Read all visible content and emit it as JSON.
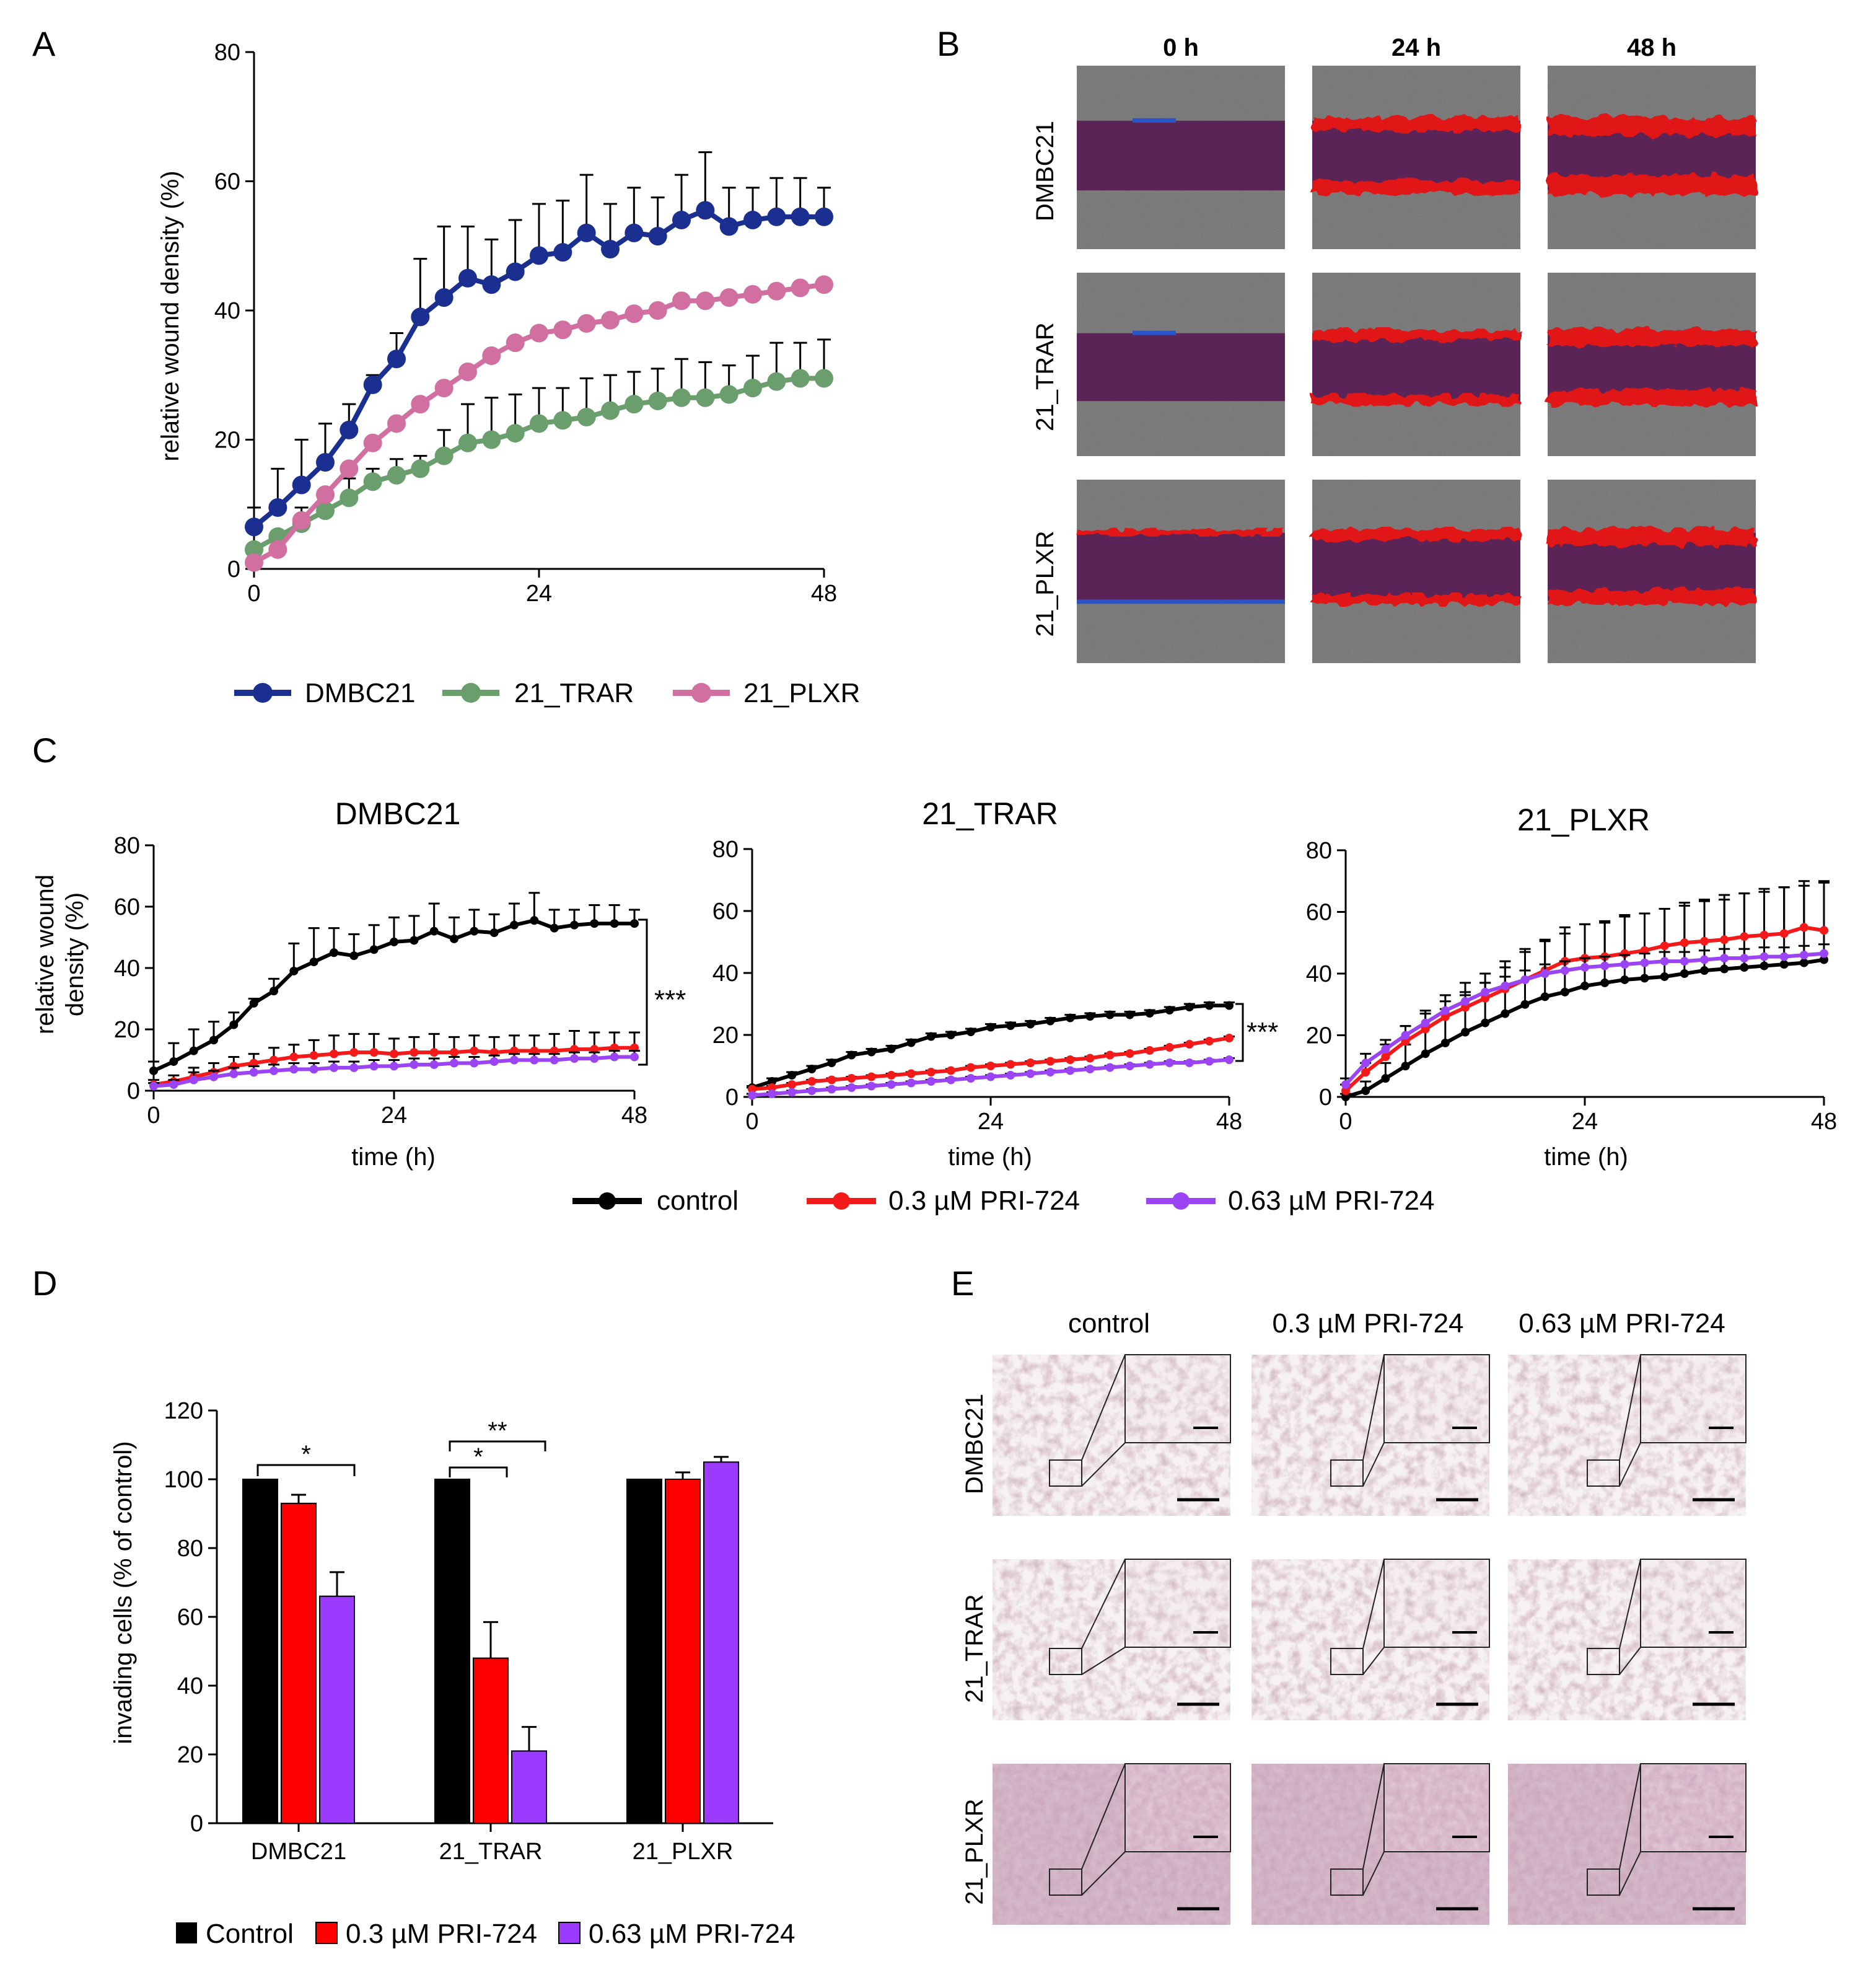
{
  "panels": {
    "A": "A",
    "B": "B",
    "C": "C",
    "D": "D",
    "E": "E"
  },
  "panelA": {
    "ylabel": "relative wound density (%)",
    "legend": [
      "DMBC21",
      "21_TRAR",
      "21_PLXR"
    ],
    "colors": {
      "DMBC21": "#1a2f8f",
      "21_TRAR": "#6a9e6c",
      "21_PLXR": "#d06fa0"
    }
  },
  "panelB": {
    "col_headers": [
      "0 h",
      "24 h",
      "48 h"
    ],
    "row_labels": [
      "DMBC21",
      "21_TRAR",
      "21_PLXR"
    ]
  },
  "panelC": {
    "titles": [
      "DMBC21",
      "21_TRAR",
      "21_PLXR"
    ],
    "ylabel_line1": "relative wound",
    "ylabel_line2": "density (%)",
    "xlabel": "time (h)",
    "sig": "***",
    "legend": [
      "control",
      "0.3 µM PRI-724",
      "0.63 µM PRI-724"
    ],
    "colors": {
      "control": "#000000",
      "low": "#f51a1a",
      "high": "#9b44f5"
    }
  },
  "panelD": {
    "ylabel": "invading cells (% of control)",
    "legend": [
      "Control",
      "0.3 µM PRI-724",
      "0.63 µM PRI-724"
    ],
    "sig": [
      "*",
      "*",
      "**"
    ],
    "colors": {
      "control": "#000000",
      "low": "#ff0000",
      "high": "#9b3bff"
    }
  },
  "panelE": {
    "col_headers": [
      "control",
      "0.3 µM PRI-724",
      "0.63 µM PRI-724"
    ],
    "row_labels": [
      "DMBC21",
      "21_TRAR",
      "21_PLXR"
    ]
  },
  "chart_data": [
    {
      "id": "A",
      "type": "line",
      "xlim": [
        0,
        48
      ],
      "ylim": [
        0,
        80
      ],
      "xticks": [
        0,
        24,
        48
      ],
      "yticks": [
        0,
        20,
        40,
        60,
        80
      ],
      "x": [
        0,
        2,
        4,
        6,
        8,
        10,
        12,
        14,
        16,
        18,
        20,
        22,
        24,
        26,
        28,
        30,
        32,
        34,
        36,
        38,
        40,
        42,
        44,
        46,
        48
      ],
      "series": [
        {
          "name": "DMBC21",
          "values": [
            6.5,
            9.5,
            13,
            16.5,
            21.5,
            28.5,
            32.5,
            39,
            42,
            45,
            44,
            46,
            48.5,
            49,
            52,
            49.5,
            52,
            51.5,
            54,
            55.5,
            53,
            54,
            54.5,
            54.5,
            54.5
          ],
          "err": [
            3,
            6,
            7,
            6,
            4,
            1.5,
            4,
            9,
            11,
            8,
            7,
            8,
            8,
            8,
            9,
            7,
            7,
            6,
            7,
            9,
            6,
            5,
            6,
            6,
            4.5
          ]
        },
        {
          "name": "21_TRAR",
          "values": [
            3,
            5,
            7,
            9,
            11,
            13.5,
            14.5,
            15.5,
            17.5,
            19.5,
            20,
            21,
            22.5,
            23,
            23.5,
            24.5,
            25.5,
            26,
            26.5,
            26.5,
            27,
            28,
            29,
            29.5,
            29.5
          ],
          "err": [
            0,
            0,
            2.5,
            3,
            3,
            2,
            2.5,
            2,
            4,
            6,
            6.5,
            6,
            5.5,
            5,
            6,
            5.5,
            5,
            5,
            6,
            5.5,
            4.5,
            5,
            6,
            5.5,
            6
          ]
        },
        {
          "name": "21_PLXR",
          "values": [
            1,
            3,
            7.5,
            11.5,
            15.5,
            19.5,
            22.5,
            25.5,
            28,
            30.5,
            33,
            35,
            36.5,
            37,
            38,
            38.5,
            39.5,
            40,
            41.5,
            41.5,
            42,
            42.5,
            43,
            43.5,
            44
          ],
          "err": [
            0,
            0,
            0,
            0,
            0,
            0,
            0,
            0,
            0,
            0,
            0,
            0,
            0,
            0,
            0,
            0,
            0,
            0,
            0,
            0,
            0,
            0,
            0,
            0,
            0
          ]
        }
      ]
    },
    {
      "id": "C1",
      "type": "line",
      "title": "DMBC21",
      "xlim": [
        0,
        48
      ],
      "ylim": [
        0,
        80
      ],
      "xticks": [
        0,
        24,
        48
      ],
      "yticks": [
        0,
        20,
        40,
        60,
        80
      ],
      "x": [
        0,
        2,
        4,
        6,
        8,
        10,
        12,
        14,
        16,
        18,
        20,
        22,
        24,
        26,
        28,
        30,
        32,
        34,
        36,
        38,
        40,
        42,
        44,
        46,
        48
      ],
      "series": [
        {
          "name": "control",
          "values": [
            6.5,
            9.5,
            13,
            16.5,
            21.5,
            28.5,
            32.5,
            39,
            42,
            45,
            44,
            46,
            48.5,
            49,
            52,
            49.5,
            52,
            51.5,
            54,
            55.5,
            53,
            54,
            54.5,
            54.5,
            54.5
          ],
          "err": [
            3,
            6,
            7,
            6,
            4,
            1.5,
            4,
            9,
            11,
            8,
            7,
            8,
            8,
            8,
            9,
            7,
            7,
            6,
            7,
            9,
            6,
            5,
            6,
            6,
            4.5
          ]
        },
        {
          "name": "0.3 µM PRI-724",
          "values": [
            2,
            3,
            4.5,
            6,
            8,
            9,
            10,
            11,
            11.5,
            12,
            12.5,
            12.5,
            12,
            12.5,
            12.5,
            12.5,
            13,
            12.5,
            13,
            13,
            13,
            13.5,
            13.5,
            14,
            14
          ],
          "err": [
            1.5,
            2,
            3,
            3,
            3,
            3,
            4,
            4,
            5,
            6,
            6,
            6,
            5,
            5,
            6,
            5,
            5,
            5,
            5,
            5,
            5.5,
            6,
            5.5,
            5,
            5
          ]
        },
        {
          "name": "0.63 µM PRI-724",
          "values": [
            1.5,
            2,
            3.5,
            4.5,
            5.5,
            6,
            6.5,
            7,
            7,
            7.5,
            7.5,
            8,
            8,
            8.5,
            8.5,
            9,
            9,
            9.5,
            10,
            10,
            10,
            10.5,
            10.5,
            11,
            11
          ],
          "err": [
            1,
            1.5,
            2.5,
            2,
            2,
            2,
            2,
            2,
            2,
            2,
            2,
            2,
            2,
            2,
            2,
            2,
            2,
            2,
            2,
            2,
            2,
            2,
            2,
            2,
            2
          ]
        }
      ]
    },
    {
      "id": "C2",
      "type": "line",
      "title": "21_TRAR",
      "xlim": [
        0,
        48
      ],
      "ylim": [
        0,
        80
      ],
      "xticks": [
        0,
        24,
        48
      ],
      "yticks": [
        0,
        20,
        40,
        60,
        80
      ],
      "x": [
        0,
        2,
        4,
        6,
        8,
        10,
        12,
        14,
        16,
        18,
        20,
        22,
        24,
        26,
        28,
        30,
        32,
        34,
        36,
        38,
        40,
        42,
        44,
        46,
        48
      ],
      "series": [
        {
          "name": "control",
          "values": [
            3,
            5,
            7,
            9,
            11,
            13.5,
            14.5,
            15.5,
            17.5,
            19.5,
            20,
            21,
            22.5,
            23,
            23.5,
            24.5,
            25.5,
            26,
            26.5,
            26.5,
            27,
            28,
            29,
            29.5,
            29.5
          ],
          "err": [
            0.5,
            1,
            1,
            1,
            1,
            1,
            1,
            1,
            1,
            1,
            1,
            1,
            1,
            1,
            1,
            1,
            1,
            1,
            1,
            1,
            1,
            1,
            1,
            1,
            1
          ]
        },
        {
          "name": "0.3 µM PRI-724",
          "values": [
            2.5,
            3,
            4,
            5,
            5.5,
            6,
            6.5,
            7,
            7.5,
            8,
            8.5,
            9.5,
            10,
            10.5,
            11,
            11.5,
            12,
            12.5,
            13.5,
            14,
            15,
            16,
            17,
            18,
            19
          ],
          "err": [
            0.5,
            0.5,
            0.5,
            0.5,
            0.5,
            0.5,
            0.5,
            0.5,
            0.5,
            0.5,
            0.5,
            0.5,
            0.5,
            0.5,
            0.5,
            0.5,
            0.5,
            0.5,
            0.5,
            0.5,
            0.5,
            0.5,
            0.5,
            0.5,
            0.5
          ]
        },
        {
          "name": "0.63 µM PRI-724",
          "values": [
            0.5,
            1,
            1.5,
            2,
            2.5,
            3,
            3.5,
            4,
            4.5,
            5,
            5.5,
            6,
            6.5,
            7,
            7.5,
            8,
            8.5,
            9,
            9.5,
            10,
            10.5,
            11,
            11,
            11.5,
            12
          ],
          "err": [
            0.5,
            0.5,
            0.5,
            0.5,
            0.5,
            0.5,
            0.5,
            0.5,
            0.5,
            0.5,
            0.5,
            0.5,
            0.5,
            0.5,
            0.5,
            0.5,
            0.5,
            0.5,
            0.5,
            0.5,
            0.5,
            0.5,
            0.5,
            0.5,
            0.5
          ]
        }
      ]
    },
    {
      "id": "C3",
      "type": "line",
      "title": "21_PLXR",
      "xlim": [
        0,
        48
      ],
      "ylim": [
        0,
        80
      ],
      "xticks": [
        0,
        24,
        48
      ],
      "yticks": [
        0,
        20,
        40,
        60,
        80
      ],
      "x": [
        0,
        2,
        4,
        6,
        8,
        10,
        12,
        14,
        16,
        18,
        20,
        22,
        24,
        26,
        28,
        30,
        32,
        34,
        36,
        38,
        40,
        42,
        44,
        46,
        48
      ],
      "series": [
        {
          "name": "control",
          "values": [
            0,
            2,
            6,
            10,
            14,
            17.5,
            21,
            24,
            27,
            30,
            32.5,
            34,
            36,
            37,
            38,
            38.5,
            39,
            40,
            41,
            41.5,
            42,
            42.5,
            43,
            43.5,
            44.5
          ],
          "err": [
            1,
            3,
            5,
            7,
            9,
            11,
            12,
            13,
            15,
            17,
            18,
            19,
            20,
            20,
            21,
            21,
            22,
            22,
            23,
            24,
            24,
            25,
            25,
            25,
            25
          ]
        },
        {
          "name": "0.3 µM PRI-724",
          "values": [
            2,
            8,
            13,
            18,
            22,
            26,
            29,
            32,
            35,
            38,
            41,
            44,
            45,
            45.5,
            46.5,
            47.5,
            49,
            50,
            50.5,
            51,
            52,
            52.5,
            53,
            55,
            54
          ],
          "err": [
            2,
            3,
            4,
            5,
            6,
            7,
            8,
            8,
            9,
            10,
            10,
            11,
            11,
            11,
            12,
            12,
            12,
            13,
            13,
            13,
            14,
            14,
            15,
            15,
            16
          ]
        },
        {
          "name": "0.63 µM PRI-724",
          "values": [
            4,
            11,
            15.5,
            20,
            24,
            28,
            31,
            34,
            36,
            38,
            40,
            41,
            42,
            42.5,
            43,
            43.5,
            44,
            44,
            44.5,
            45,
            45,
            45.5,
            45.5,
            46,
            46.5
          ],
          "err": [
            2,
            3,
            3,
            3,
            3,
            3,
            3,
            3,
            3,
            3,
            3,
            3,
            3,
            3,
            3,
            3,
            3,
            3,
            3,
            3,
            3,
            3,
            3,
            3,
            3
          ]
        }
      ]
    },
    {
      "id": "D",
      "type": "bar",
      "ylim": [
        0,
        120
      ],
      "yticks": [
        0,
        20,
        40,
        60,
        80,
        100,
        120
      ],
      "ylabel": "invading cells (% of control)",
      "categories": [
        "DMBC21",
        "21_TRAR",
        "21_PLXR"
      ],
      "series": [
        {
          "name": "Control",
          "values": [
            100,
            100,
            100
          ],
          "err": [
            0,
            0,
            0
          ]
        },
        {
          "name": "0.3 µM PRI-724",
          "values": [
            93,
            48,
            100
          ],
          "err": [
            2.5,
            10.5,
            2
          ]
        },
        {
          "name": "0.63 µM PRI-724",
          "values": [
            66,
            21,
            105
          ],
          "err": [
            7,
            7,
            1.5
          ]
        }
      ]
    }
  ]
}
